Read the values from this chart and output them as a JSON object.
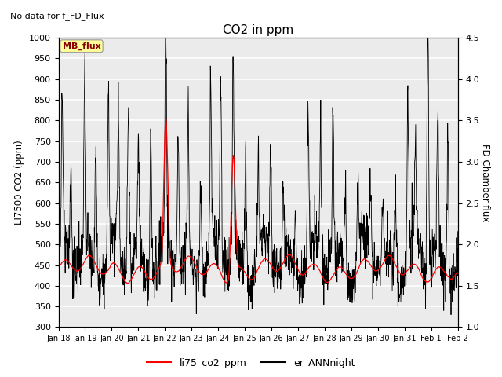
{
  "title": "CO2 in ppm",
  "top_left_text": "No data for f_FD_Flux",
  "ylabel_left": "LI7500 CO2 (ppm)",
  "ylabel_right": "FD Chamber-flux",
  "ylim_left": [
    300,
    1000
  ],
  "ylim_right": [
    1.0,
    4.5
  ],
  "yticks_left": [
    300,
    350,
    400,
    450,
    500,
    550,
    600,
    650,
    700,
    750,
    800,
    850,
    900,
    950,
    1000
  ],
  "yticks_right": [
    1.0,
    1.5,
    2.0,
    2.5,
    3.0,
    3.5,
    4.0,
    4.5
  ],
  "xtick_labels": [
    "Jan 18",
    "Jan 19",
    "Jan 20",
    "Jan 21",
    "Jan 22",
    "Jan 23",
    "Jan 24",
    "Jan 25",
    "Jan 26",
    "Jan 27",
    "Jan 28",
    "Jan 29",
    "Jan 30",
    "Jan 31",
    "Feb 1",
    "Feb 2"
  ],
  "legend_items": [
    {
      "label": "li75_co2_ppm",
      "color": "red"
    },
    {
      "label": "er_ANNnight",
      "color": "black"
    }
  ],
  "mb_flux_box": {
    "text": "MB_flux",
    "text_color": "#8B0000",
    "bg_color": "#FFFF99",
    "edge_color": "#999999"
  },
  "line_red_color": "red",
  "line_black_color": "black",
  "plot_bg_color": "#ebebeb",
  "grid_color": "white"
}
